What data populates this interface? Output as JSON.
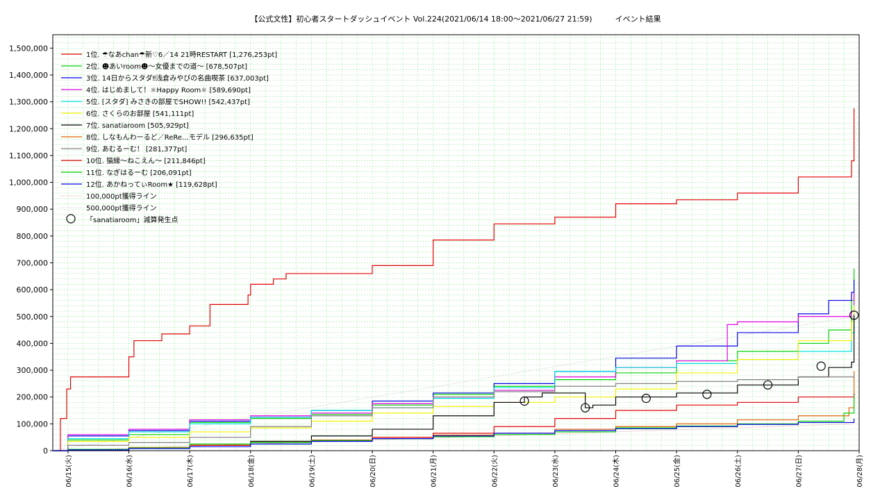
{
  "chart_data": {
    "type": "line",
    "title": "【公式文性】初心者スタートダッシュイベント Vol.224(2021/06/14 18:00～2021/06/27 21:59)　　　イベント結果",
    "xlabel": "",
    "ylabel": "",
    "x_ticks": [
      "06/15(火)",
      "06/16(水)",
      "06/17(木)",
      "06/18(金)",
      "06/19(土)",
      "06/20(日)",
      "06/21(月)",
      "06/22(火)",
      "06/23(水)",
      "06/24(木)",
      "06/25(金)",
      "06/26(土)",
      "06/27(日)",
      "06/28(月)"
    ],
    "xlim": [
      "2021-06-14 18:00",
      "2021-06-28 00:00"
    ],
    "ylim": [
      0,
      1550000
    ],
    "y_ticks": [
      "0",
      "100,000",
      "200,000",
      "300,000",
      "400,000",
      "500,000",
      "600,000",
      "700,000",
      "800,000",
      "900,000",
      "1,000,000",
      "1,100,000",
      "1,200,000",
      "1,300,000",
      "1,400,000",
      "1,500,000"
    ],
    "grid": true,
    "legend_position": "top-left",
    "series": [
      {
        "name": "1位. ☂なあchan☂新♡6／14 21時RESTART [1,276,253pt]",
        "color": "#e00000",
        "x": [
          "2021-06-14 18:00",
          "2021-06-14 21:00",
          "2021-06-14 23:30",
          "2021-06-15 01:00",
          "2021-06-16 00:00",
          "2021-06-16 02:00",
          "2021-06-16 13:00",
          "2021-06-17 00:00",
          "2021-06-17 08:00",
          "2021-06-17 23:00",
          "2021-06-18 00:00",
          "2021-06-18 09:00",
          "2021-06-18 14:00",
          "2021-06-20 00:00",
          "2021-06-21 00:00",
          "2021-06-22 00:00",
          "2021-06-23 00:00",
          "2021-06-24 00:00",
          "2021-06-25 00:00",
          "2021-06-26 00:00",
          "2021-06-27 00:00",
          "2021-06-27 21:00",
          "2021-06-27 21:59"
        ],
        "values": [
          0,
          120000,
          230000,
          275000,
          350000,
          410000,
          435000,
          465000,
          545000,
          580000,
          620000,
          640000,
          660000,
          690000,
          785000,
          845000,
          870000,
          920000,
          935000,
          960000,
          1020000,
          1080000,
          1276253
        ]
      },
      {
        "name": "2位. ☻あいroom☻〜女優までの道〜 [678,507pt]",
        "color": "#00d000",
        "x": [
          "2021-06-14 18:00",
          "2021-06-15 00:00",
          "2021-06-16 00:00",
          "2021-06-17 00:00",
          "2021-06-18 00:00",
          "2021-06-19 00:00",
          "2021-06-20 00:00",
          "2021-06-21 00:00",
          "2021-06-22 00:00",
          "2021-06-23 00:00",
          "2021-06-24 00:00",
          "2021-06-25 00:00",
          "2021-06-26 00:00",
          "2021-06-27 00:00",
          "2021-06-27 12:00",
          "2021-06-27 21:00",
          "2021-06-27 21:59"
        ],
        "values": [
          0,
          40000,
          60000,
          105000,
          120000,
          135000,
          170000,
          210000,
          240000,
          265000,
          290000,
          335000,
          370000,
          400000,
          450000,
          560000,
          678507
        ]
      },
      {
        "name": "3位. 14日からスタダ‼浅倉みやびの名曲喫茶 [637,003pt]",
        "color": "#0000e0",
        "x": [
          "2021-06-14 18:00",
          "2021-06-15 00:00",
          "2021-06-16 00:00",
          "2021-06-17 00:00",
          "2021-06-18 00:00",
          "2021-06-19 00:00",
          "2021-06-20 00:00",
          "2021-06-21 00:00",
          "2021-06-22 00:00",
          "2021-06-23 00:00",
          "2021-06-24 00:00",
          "2021-06-25 00:00",
          "2021-06-26 00:00",
          "2021-06-27 00:00",
          "2021-06-27 12:00",
          "2021-06-27 21:00",
          "2021-06-27 21:59"
        ],
        "values": [
          0,
          55000,
          75000,
          110000,
          125000,
          150000,
          185000,
          215000,
          250000,
          295000,
          345000,
          390000,
          440000,
          510000,
          560000,
          590000,
          637003
        ]
      },
      {
        "name": "4位. はじめまして！☼Happy Room☼ [589,690pt]",
        "color": "#e000e0",
        "x": [
          "2021-06-14 18:00",
          "2021-06-15 00:00",
          "2021-06-16 00:00",
          "2021-06-17 00:00",
          "2021-06-18 00:00",
          "2021-06-19 00:00",
          "2021-06-20 00:00",
          "2021-06-21 00:00",
          "2021-06-22 00:00",
          "2021-06-23 00:00",
          "2021-06-24 00:00",
          "2021-06-25 00:00",
          "2021-06-25 20:00",
          "2021-06-26 00:00",
          "2021-06-27 00:00",
          "2021-06-27 21:00",
          "2021-06-27 21:59"
        ],
        "values": [
          0,
          60000,
          80000,
          115000,
          130000,
          140000,
          175000,
          200000,
          225000,
          275000,
          310000,
          335000,
          470000,
          480000,
          500000,
          520000,
          589690
        ]
      },
      {
        "name": "5位. [スタダ] みさきの部屋でSHOW!! [542,437pt]",
        "color": "#00e0e0",
        "x": [
          "2021-06-14 18:00",
          "2021-06-15 00:00",
          "2021-06-16 00:00",
          "2021-06-17 00:00",
          "2021-06-18 00:00",
          "2021-06-19 00:00",
          "2021-06-20 00:00",
          "2021-06-21 00:00",
          "2021-06-22 00:00",
          "2021-06-23 00:00",
          "2021-06-24 00:00",
          "2021-06-25 00:00",
          "2021-06-26 00:00",
          "2021-06-27 00:00",
          "2021-06-27 21:00",
          "2021-06-27 21:59"
        ],
        "values": [
          0,
          45000,
          70000,
          100000,
          125000,
          150000,
          160000,
          195000,
          235000,
          295000,
          310000,
          325000,
          340000,
          370000,
          440000,
          542437
        ]
      },
      {
        "name": "6位. さくらのお部屋 [541,111pt]",
        "color": "#f0f000",
        "x": [
          "2021-06-14 18:00",
          "2021-06-15 00:00",
          "2021-06-16 00:00",
          "2021-06-17 00:00",
          "2021-06-18 00:00",
          "2021-06-19 00:00",
          "2021-06-20 00:00",
          "2021-06-21 00:00",
          "2021-06-22 00:00",
          "2021-06-23 00:00",
          "2021-06-24 00:00",
          "2021-06-25 00:00",
          "2021-06-26 00:00",
          "2021-06-27 00:00",
          "2021-06-27 21:00",
          "2021-06-27 21:59"
        ],
        "values": [
          0,
          35000,
          50000,
          70000,
          85000,
          110000,
          140000,
          165000,
          180000,
          200000,
          230000,
          290000,
          340000,
          410000,
          480000,
          541111
        ]
      },
      {
        "name": "7位. sanatiaroom [505,929pt]",
        "color": "#000000",
        "x": [
          "2021-06-14 18:00",
          "2021-06-15 00:00",
          "2021-06-16 00:00",
          "2021-06-17 00:00",
          "2021-06-18 00:00",
          "2021-06-19 00:00",
          "2021-06-20 00:00",
          "2021-06-21 00:00",
          "2021-06-22 00:00",
          "2021-06-22 12:00",
          "2021-06-22 19:00",
          "2021-06-23 12:00",
          "2021-06-23 15:00",
          "2021-06-24 00:00",
          "2021-06-25 00:00",
          "2021-06-26 00:00",
          "2021-06-27 00:00",
          "2021-06-27 12:00",
          "2021-06-27 21:00",
          "2021-06-27 21:59"
        ],
        "values": [
          0,
          5000,
          10000,
          20000,
          35000,
          55000,
          80000,
          130000,
          180000,
          200000,
          215000,
          160000,
          170000,
          200000,
          215000,
          245000,
          275000,
          310000,
          330000,
          505929
        ]
      },
      {
        "name": "8位. しなもんわーるど／ReRe…モデル [296,635pt]",
        "color": "#e06000",
        "x": [
          "2021-06-14 18:00",
          "2021-06-15 00:00",
          "2021-06-16 00:00",
          "2021-06-17 00:00",
          "2021-06-18 00:00",
          "2021-06-19 00:00",
          "2021-06-20 00:00",
          "2021-06-21 00:00",
          "2021-06-22 00:00",
          "2021-06-23 00:00",
          "2021-06-24 00:00",
          "2021-06-25 00:00",
          "2021-06-26 00:00",
          "2021-06-27 00:00",
          "2021-06-27 20:00",
          "2021-06-27 21:59"
        ],
        "values": [
          0,
          5000,
          12000,
          20000,
          30000,
          40000,
          50000,
          58000,
          65000,
          80000,
          90000,
          100000,
          115000,
          130000,
          160000,
          296635
        ]
      },
      {
        "name": "9位. あむるーむ！ [281,377pt]",
        "color": "#808080",
        "x": [
          "2021-06-14 18:00",
          "2021-06-15 00:00",
          "2021-06-16 00:00",
          "2021-06-17 00:00",
          "2021-06-18 00:00",
          "2021-06-19 00:00",
          "2021-06-20 00:00",
          "2021-06-21 00:00",
          "2021-06-22 00:00",
          "2021-06-23 00:00",
          "2021-06-24 00:00",
          "2021-06-25 00:00",
          "2021-06-26 00:00",
          "2021-06-27 00:00",
          "2021-06-27 21:59"
        ],
        "values": [
          0,
          20000,
          30000,
          50000,
          90000,
          130000,
          160000,
          200000,
          220000,
          240000,
          250000,
          258000,
          265000,
          275000,
          281377
        ]
      },
      {
        "name": "10位. 猫縁〜ねこえん〜 [211,846pt]",
        "color": "#e00000",
        "x": [
          "2021-06-14 18:00",
          "2021-06-15 00:00",
          "2021-06-16 00:00",
          "2021-06-17 00:00",
          "2021-06-18 00:00",
          "2021-06-19 00:00",
          "2021-06-20 00:00",
          "2021-06-21 00:00",
          "2021-06-22 00:00",
          "2021-06-23 00:00",
          "2021-06-24 00:00",
          "2021-06-25 00:00",
          "2021-06-26 00:00",
          "2021-06-27 00:00",
          "2021-06-27 21:59"
        ],
        "values": [
          0,
          5000,
          10000,
          20000,
          30000,
          38000,
          50000,
          65000,
          90000,
          120000,
          150000,
          170000,
          180000,
          200000,
          211846
        ]
      },
      {
        "name": "11位. なぎはるーむ [206,091pt]",
        "color": "#00d000",
        "x": [
          "2021-06-14 18:00",
          "2021-06-15 00:00",
          "2021-06-16 00:00",
          "2021-06-17 00:00",
          "2021-06-18 00:00",
          "2021-06-19 00:00",
          "2021-06-20 00:00",
          "2021-06-21 00:00",
          "2021-06-22 00:00",
          "2021-06-23 00:00",
          "2021-06-24 00:00",
          "2021-06-25 00:00",
          "2021-06-26 00:00",
          "2021-06-27 00:00",
          "2021-06-27 18:00",
          "2021-06-27 21:59"
        ],
        "values": [
          0,
          5000,
          10000,
          25000,
          30000,
          38000,
          45000,
          52000,
          60000,
          70000,
          85000,
          92000,
          100000,
          110000,
          140000,
          206091
        ]
      },
      {
        "name": "12位. あかねってぃRoom★ [119,628pt]",
        "color": "#0000e0",
        "x": [
          "2021-06-14 18:00",
          "2021-06-15 00:00",
          "2021-06-16 00:00",
          "2021-06-17 00:00",
          "2021-06-18 00:00",
          "2021-06-19 00:00",
          "2021-06-20 00:00",
          "2021-06-21 00:00",
          "2021-06-22 00:00",
          "2021-06-23 00:00",
          "2021-06-24 00:00",
          "2021-06-25 00:00",
          "2021-06-26 00:00",
          "2021-06-27 00:00",
          "2021-06-27 21:59"
        ],
        "values": [
          0,
          3000,
          8000,
          15000,
          25000,
          35000,
          45000,
          55000,
          65000,
          75000,
          82000,
          90000,
          98000,
          105000,
          119628
        ]
      }
    ],
    "reference_lines": [
      {
        "name": "100,000pt獲得ライン",
        "color": "#e08080",
        "x": [
          "2021-06-14 18:00",
          "2021-06-27 21:59"
        ],
        "values": [
          0,
          100000
        ]
      },
      {
        "name": "500,000pt獲得ライン",
        "color": "#c0c0c0",
        "x": [
          "2021-06-14 18:00",
          "2021-06-27 21:59"
        ],
        "values": [
          0,
          500000
        ]
      }
    ],
    "markers": {
      "name": "「sanatiaroom」減算発生点",
      "x": [
        "2021-06-22 12:00",
        "2021-06-23 12:00",
        "2021-06-24 12:00",
        "2021-06-25 12:00",
        "2021-06-26 12:00",
        "2021-06-27 09:00",
        "2021-06-27 21:59"
      ],
      "values": [
        185000,
        160000,
        195000,
        210000,
        245000,
        315000,
        505000
      ]
    }
  }
}
